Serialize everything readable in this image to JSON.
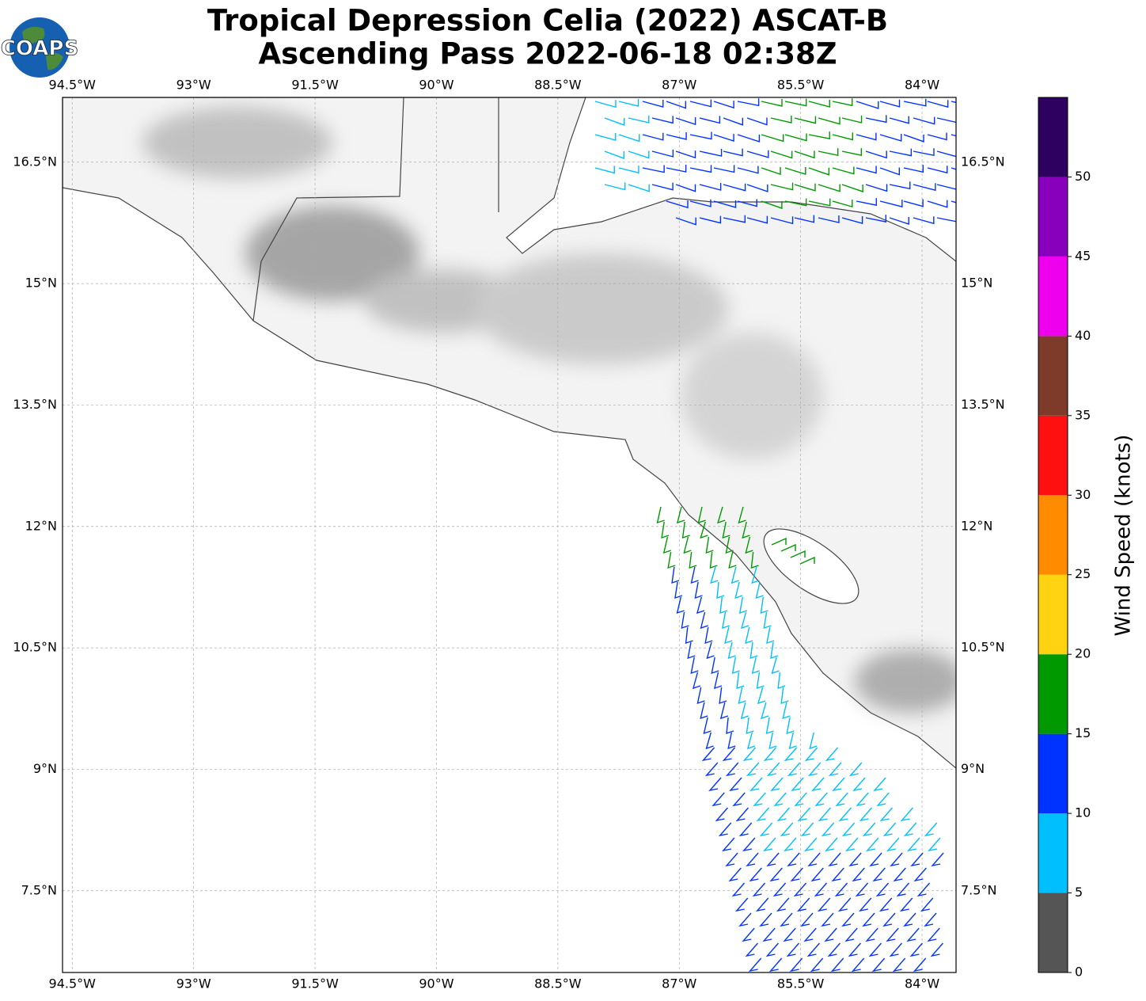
{
  "header": {
    "title_line1": "Tropical Depression Celia (2022) ASCAT-B",
    "title_line2": "Ascending Pass 2022-06-18 02:38Z"
  },
  "logo": "COAPS",
  "map": {
    "lon_range": [
      -94.62,
      -83.58
    ],
    "lat_range": [
      6.49,
      17.3
    ],
    "lon_ticks": [
      {
        "value": -94.5,
        "label": "94.5°W"
      },
      {
        "value": -93,
        "label": "93°W"
      },
      {
        "value": -91.5,
        "label": "91.5°W"
      },
      {
        "value": -90,
        "label": "90°W"
      },
      {
        "value": -88.5,
        "label": "88.5°W"
      },
      {
        "value": -87,
        "label": "87°W"
      },
      {
        "value": -85.5,
        "label": "85.5°W"
      },
      {
        "value": -84,
        "label": "84°W"
      }
    ],
    "lat_ticks": [
      {
        "value": 16.5,
        "label": "16.5°N"
      },
      {
        "value": 15,
        "label": "15°N"
      },
      {
        "value": 13.5,
        "label": "13.5°N"
      },
      {
        "value": 12,
        "label": "12°N"
      },
      {
        "value": 10.5,
        "label": "10.5°N"
      },
      {
        "value": 9,
        "label": "9°N"
      },
      {
        "value": 7.5,
        "label": "7.5°N"
      }
    ],
    "grid": true
  },
  "colorbar": {
    "label": "Wind Speed (knots)",
    "range": [
      0,
      55
    ],
    "ticks": [
      0,
      5,
      10,
      15,
      20,
      25,
      30,
      35,
      40,
      45,
      50
    ],
    "colors": [
      "#555555",
      "#00bfff",
      "#0033ff",
      "#009900",
      "#ffd311",
      "#ff8c00",
      "#ff1010",
      "#7f3b2a",
      "#ee00ee",
      "#8800bb",
      "#2e0060"
    ]
  }
}
